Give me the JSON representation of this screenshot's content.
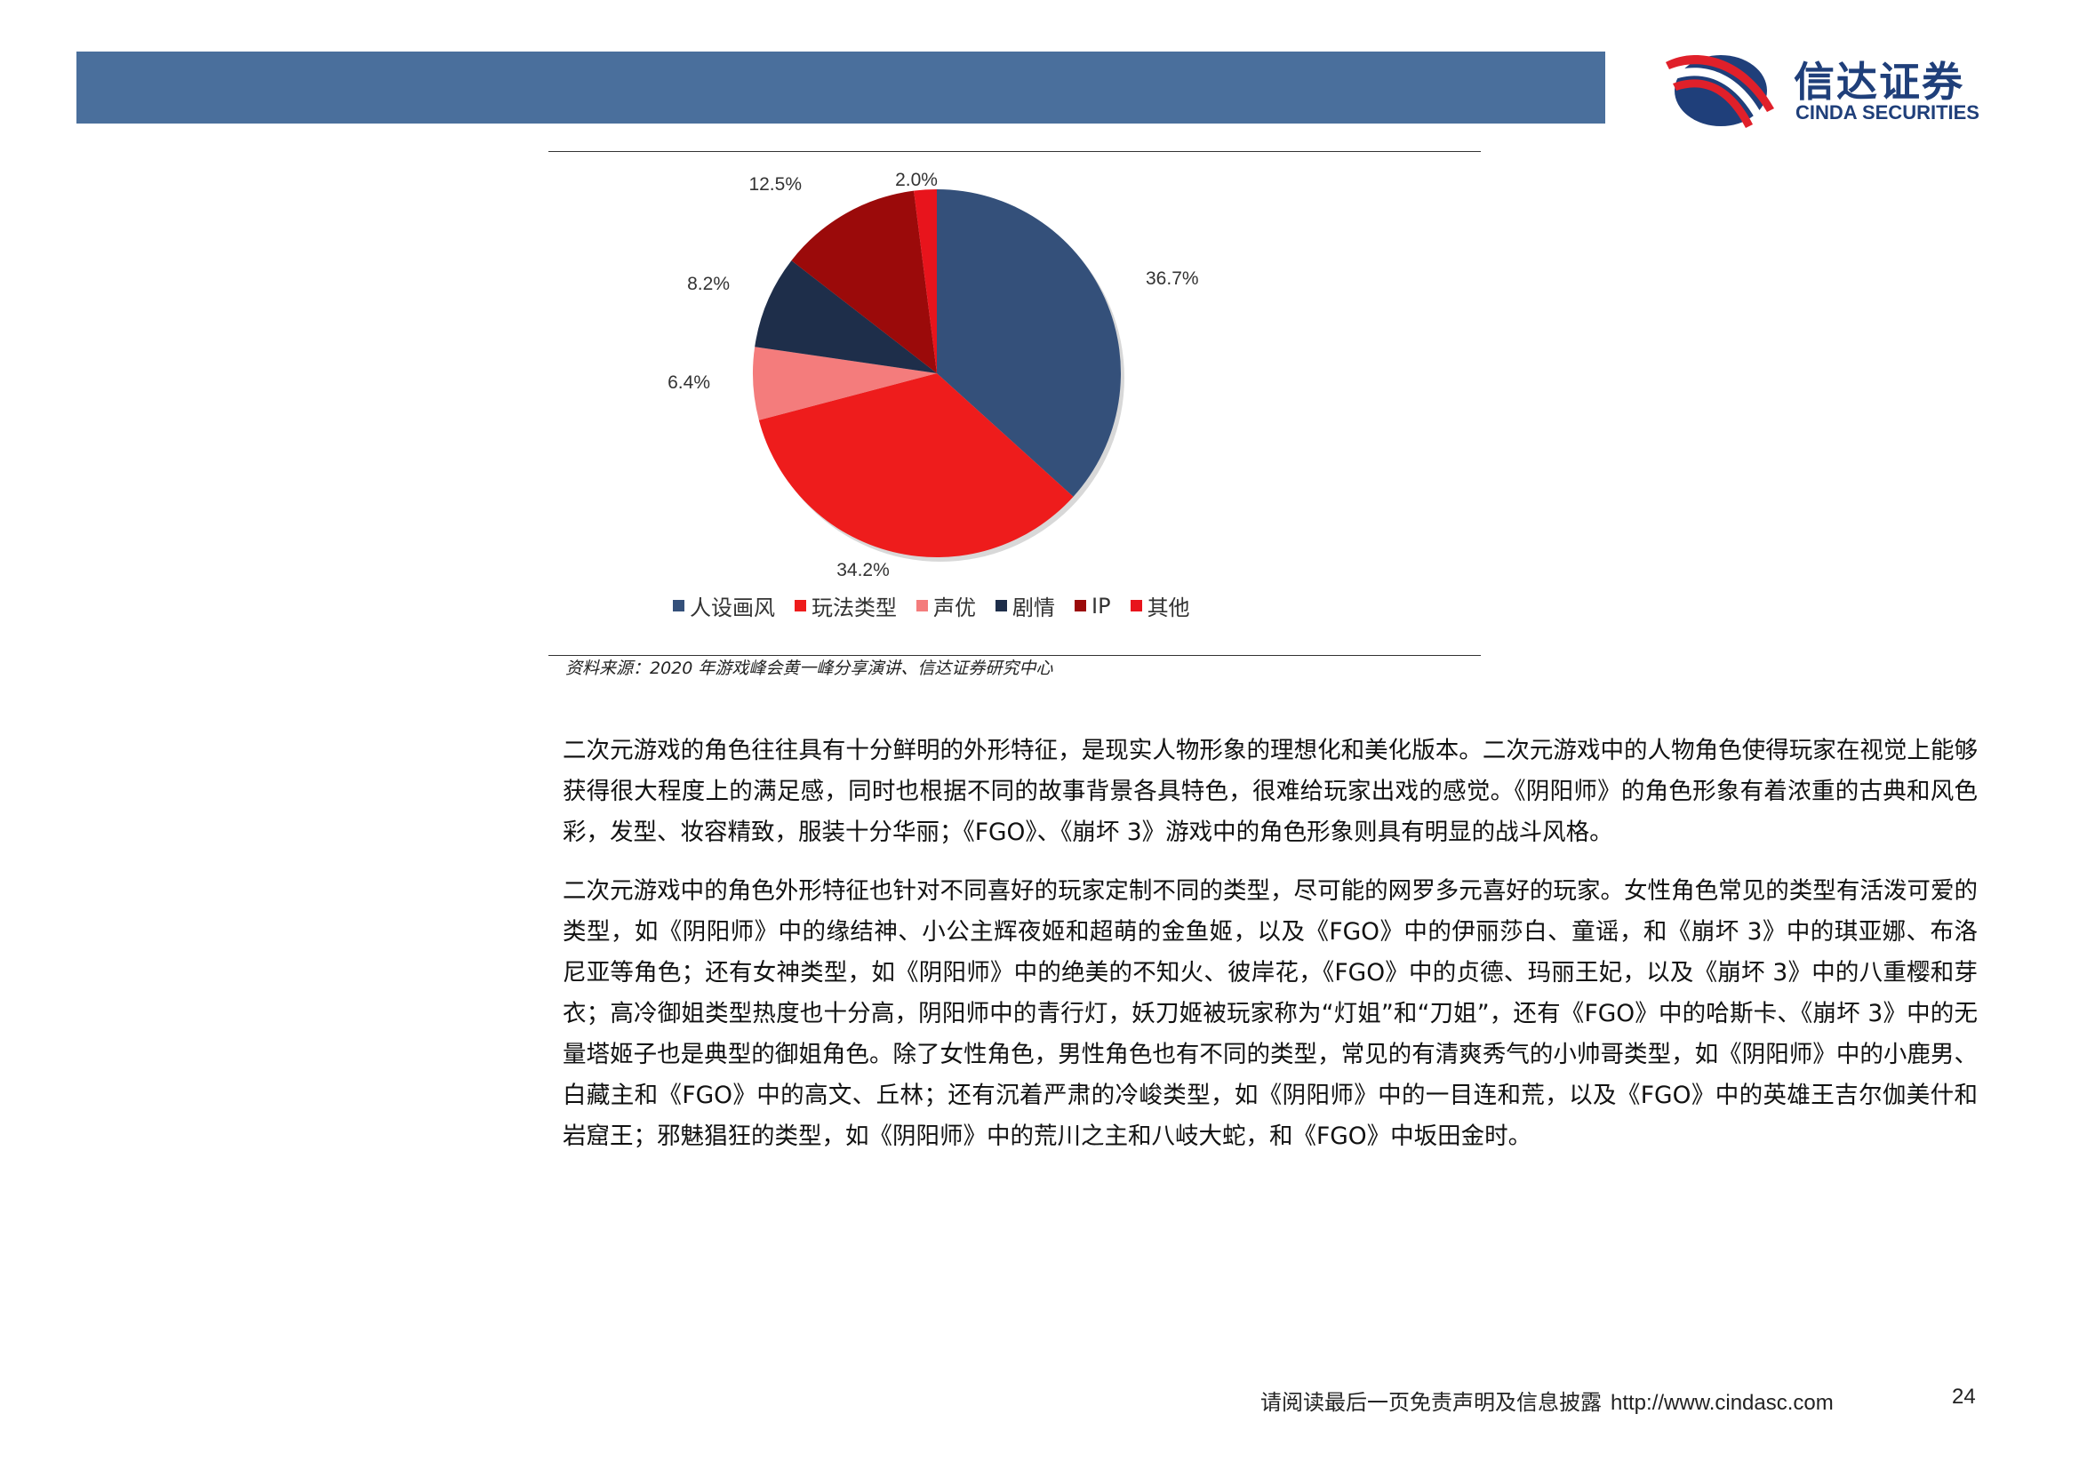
{
  "header": {
    "brand_cn": "信达证券",
    "brand_en": "CINDA SECURITIES",
    "bar_color": "#4a6f9c",
    "brand_color": "#1f3f7a"
  },
  "chart_data": {
    "type": "pie",
    "labels": [
      "人设画风",
      "玩法类型",
      "声优",
      "剧情",
      "IP",
      "其他"
    ],
    "values": [
      36.7,
      34.2,
      6.4,
      8.2,
      12.5,
      2.0
    ],
    "value_labels": [
      "36.7%",
      "34.2%",
      "6.4%",
      "8.2%",
      "12.5%",
      "2.0%"
    ],
    "colors": [
      "#34507a",
      "#ee1c1c",
      "#f47c7c",
      "#1e2e4a",
      "#9b0a0a",
      "#e8141c"
    ],
    "legend_position": "bottom"
  },
  "source": "资料来源：2020 年游戏峰会黄一峰分享演讲、信达证券研究中心",
  "paragraphs": [
    "二次元游戏的角色往往具有十分鲜明的外形特征，是现实人物形象的理想化和美化版本。二次元游戏中的人物角色使得玩家在视觉上能够获得很大程度上的满足感，同时也根据不同的故事背景各具特色，很难给玩家出戏的感觉。《阴阳师》的角色形象有着浓重的古典和风色彩，发型、妆容精致，服装十分华丽；《FGO》、《崩坏 3》游戏中的角色形象则具有明显的战斗风格。",
    "二次元游戏中的角色外形特征也针对不同喜好的玩家定制不同的类型，尽可能的网罗多元喜好的玩家。女性角色常见的类型有活泼可爱的类型，如《阴阳师》中的缘结神、小公主辉夜姬和超萌的金鱼姬，以及《FGO》中的伊丽莎白、童谣，和《崩坏 3》中的琪亚娜、布洛尼亚等角色；还有女神类型，如《阴阳师》中的绝美的不知火、彼岸花，《FGO》中的贞德、玛丽王妃，以及《崩坏 3》中的八重樱和芽衣；高冷御姐类型热度也十分高，阴阳师中的青行灯，妖刀姬被玩家称为“灯姐”和“刀姐”，还有《FGO》中的哈斯卡、《崩坏 3》中的无量塔姬子也是典型的御姐角色。除了女性角色，男性角色也有不同的类型，常见的有清爽秀气的小帅哥类型，如《阴阳师》中的小鹿男、白藏主和《FGO》中的高文、丘林；还有沉着严肃的冷峻类型，如《阴阳师》中的一目连和荒，以及《FGO》中的英雄王吉尔伽美什和岩窟王；邪魅猖狂的类型，如《阴阳师》中的荒川之主和八岐大蛇，和《FGO》中坂田金时。"
  ],
  "footer": {
    "disclaimer": "请阅读最后一页免责声明及信息披露",
    "url": "http://www.cindasc.com",
    "page_number": "24"
  }
}
